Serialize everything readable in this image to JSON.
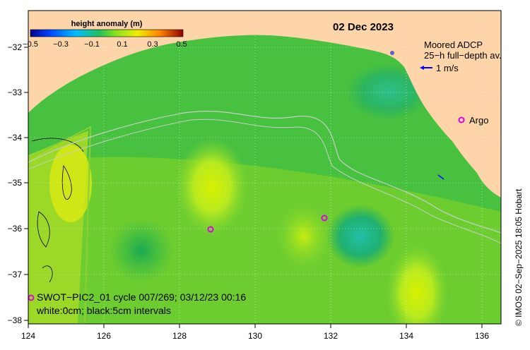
{
  "map": {
    "date": "02 Dec 2023",
    "colorbar": {
      "title": "height anomaly (m)",
      "ticks": [
        "−0.5",
        "−0.3",
        "−0.1",
        "0.1",
        "0.3",
        "0.5"
      ]
    },
    "legend": {
      "adcp_line1": "Moored ADCP",
      "adcp_line2": "25−h full−depth av.",
      "arrow_label": "1 m/s",
      "argo_label": "Argo"
    },
    "swot": {
      "line1": "SWOT−PIC2_01 cycle 007/269; 03/12/23 00:16",
      "line2": "white:0cm; black:5cm intervals"
    },
    "credit": "© IMOS 02−Sep−2025 18:05 Hobart",
    "axes": {
      "lon_ticks": [
        "124",
        "126",
        "128",
        "130",
        "132",
        "134",
        "136"
      ],
      "lat_ticks": [
        "−32",
        "−33",
        "−34",
        "−35",
        "−36",
        "−37",
        "−38"
      ]
    },
    "colors": {
      "land": "#fdd5a8",
      "ocean_base": "#3dba4a",
      "accent_argo": "#e000e0",
      "arrow": "#0000ff"
    }
  }
}
